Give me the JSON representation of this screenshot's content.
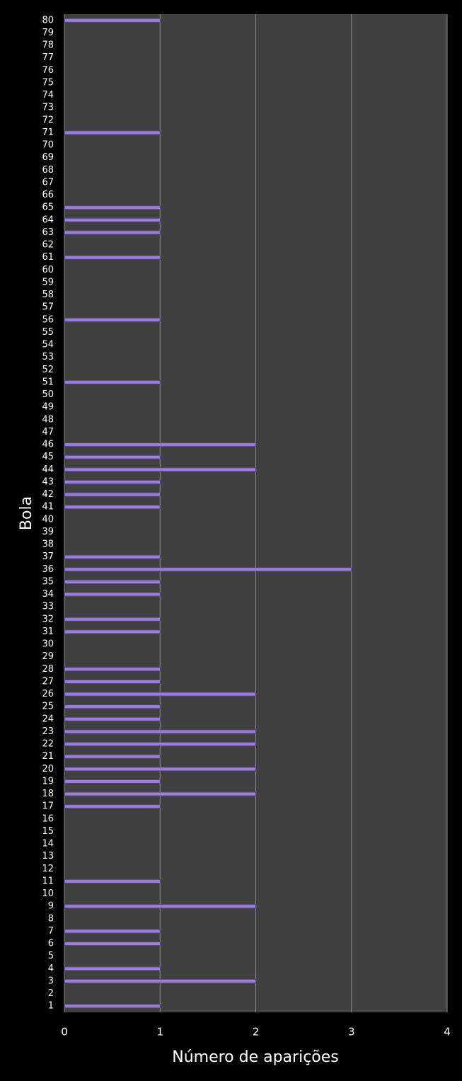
{
  "chart_data": {
    "type": "bar",
    "orientation": "horizontal",
    "x_label": "Número de aparições",
    "y_label": "Bola",
    "categories": [
      "1",
      "2",
      "3",
      "4",
      "5",
      "6",
      "7",
      "8",
      "9",
      "10",
      "11",
      "12",
      "13",
      "14",
      "15",
      "16",
      "17",
      "18",
      "19",
      "20",
      "21",
      "22",
      "23",
      "24",
      "25",
      "26",
      "27",
      "28",
      "29",
      "30",
      "31",
      "32",
      "33",
      "34",
      "35",
      "36",
      "37",
      "38",
      "39",
      "40",
      "41",
      "42",
      "43",
      "44",
      "45",
      "46",
      "47",
      "48",
      "49",
      "50",
      "51",
      "52",
      "53",
      "54",
      "55",
      "56",
      "57",
      "58",
      "59",
      "60",
      "61",
      "62",
      "63",
      "64",
      "65",
      "66",
      "67",
      "68",
      "69",
      "70",
      "71",
      "72",
      "73",
      "74",
      "75",
      "76",
      "77",
      "78",
      "79",
      "80"
    ],
    "values": [
      1,
      0,
      2,
      1,
      0,
      1,
      1,
      0,
      2,
      0,
      1,
      0,
      0,
      0,
      0,
      0,
      1,
      2,
      1,
      2,
      1,
      2,
      2,
      1,
      1,
      2,
      1,
      1,
      0,
      0,
      1,
      1,
      0,
      1,
      1,
      3,
      1,
      0,
      0,
      0,
      1,
      1,
      1,
      2,
      1,
      2,
      0,
      0,
      0,
      0,
      1,
      0,
      0,
      0,
      0,
      1,
      0,
      0,
      0,
      0,
      1,
      0,
      1,
      1,
      1,
      0,
      0,
      0,
      0,
      0,
      1,
      0,
      0,
      0,
      0,
      0,
      0,
      0,
      0,
      1
    ],
    "color": "#9a80d4",
    "xlim": [
      0,
      4
    ],
    "xticks": [
      0,
      1,
      2,
      3,
      4
    ],
    "grid": true
  }
}
